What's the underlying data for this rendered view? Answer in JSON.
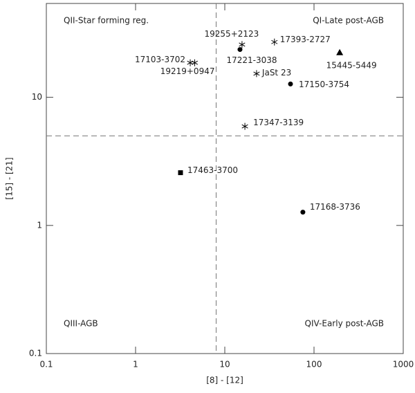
{
  "chart_data": {
    "type": "scatter",
    "x_label": "[8] - [12]",
    "y_label": "[15] - [21]",
    "x_log": true,
    "y_log": true,
    "xlim": [
      0.1,
      1000
    ],
    "ylim": [
      0.1,
      54
    ],
    "xticks": [
      0.1,
      1,
      10,
      100,
      1000
    ],
    "yticks": [
      0.1,
      1,
      10
    ],
    "dividers": {
      "x": 8,
      "y": 5
    },
    "quadrant_labels": [
      "QII-Star forming reg.",
      "QI-Late post-AGB",
      "QIII-AGB",
      "QIV-Early post-AGB"
    ],
    "color": "#000000",
    "points": [
      {
        "label": "19255+2123",
        "x": 15.6,
        "y": 25.8,
        "marker": "star"
      },
      {
        "label": "17221-3038",
        "x": 14.8,
        "y": 23.6,
        "marker": "circle"
      },
      {
        "label": "17393-2727",
        "x": 36,
        "y": 27,
        "marker": "star"
      },
      {
        "label": "15445-5449",
        "x": 194,
        "y": 22.4,
        "marker": "triangle"
      },
      {
        "label": "17103-3702",
        "x": 4.1,
        "y": 18.6,
        "marker": "star"
      },
      {
        "label": "19219+0947",
        "x": 4.6,
        "y": 18.6,
        "marker": "star"
      },
      {
        "label": "JaSt 23",
        "x": 22.7,
        "y": 15.3,
        "marker": "star"
      },
      {
        "label": "17150-3754",
        "x": 54.5,
        "y": 12.7,
        "marker": "circle"
      },
      {
        "label": "17347-3139",
        "x": 16.8,
        "y": 5.93,
        "marker": "star"
      },
      {
        "label": "17463-3700",
        "x": 3.19,
        "y": 2.58,
        "marker": "square"
      },
      {
        "label": "17168-3736",
        "x": 75,
        "y": 1.27,
        "marker": "circle"
      }
    ]
  }
}
